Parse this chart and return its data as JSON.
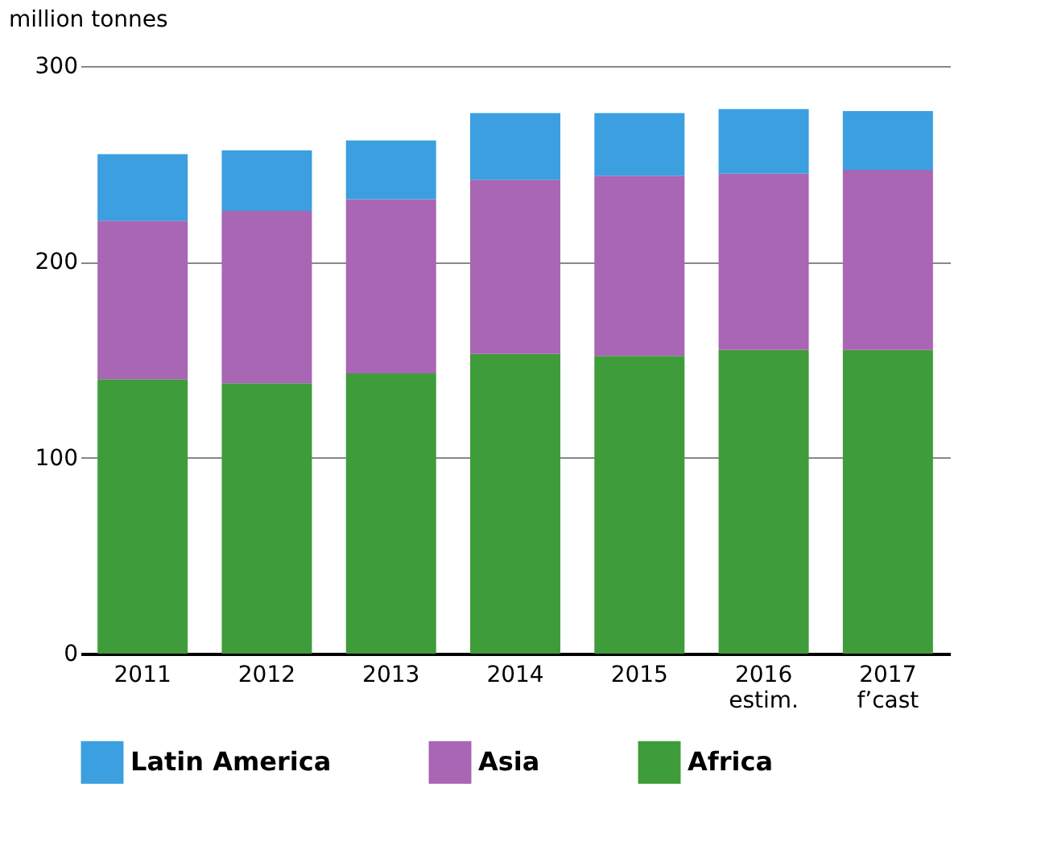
{
  "chart_data": {
    "type": "bar",
    "ylabel": "million tonnes",
    "stacked": true,
    "categories": [
      "2011",
      "2012",
      "2013",
      "2014",
      "2015",
      "2016\nestim.",
      "2017\nf’cast"
    ],
    "series": [
      {
        "name": "Africa",
        "color": "#3f9c3a",
        "values": [
          140,
          138,
          143,
          153,
          152,
          155,
          155
        ]
      },
      {
        "name": "Asia",
        "color": "#a866b4",
        "values": [
          81,
          88,
          89,
          89,
          92,
          90,
          92
        ]
      },
      {
        "name": "Latin America",
        "color": "#3b9fe0",
        "values": [
          34,
          31,
          30,
          34,
          32,
          33,
          30
        ]
      }
    ],
    "ylim": [
      0,
      300
    ],
    "yticks": [
      0,
      100,
      200,
      300
    ],
    "grid": "y",
    "legend": "bottom"
  }
}
